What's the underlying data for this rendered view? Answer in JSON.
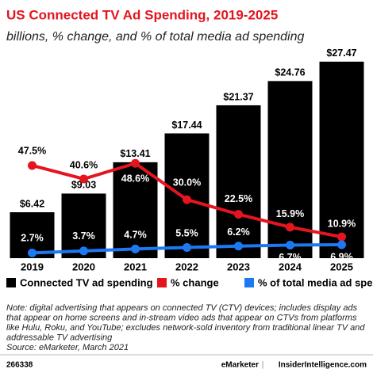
{
  "chart_data": {
    "type": "bar",
    "title": "US Connected TV Ad Spending, 2019-2025",
    "subtitle": "billions, % change, and % of total media ad spending",
    "categories": [
      "2019",
      "2020",
      "2021",
      "2022",
      "2023",
      "2024",
      "2025"
    ],
    "ylim": [
      0,
      30
    ],
    "y2lim": [
      0,
      110
    ],
    "legend": "bottom",
    "series": [
      {
        "name": "Connected TV ad spending",
        "type": "bar",
        "color": "#000000",
        "values": [
          6.42,
          9.03,
          13.41,
          17.44,
          21.37,
          24.76,
          27.47
        ],
        "value_labels": [
          "$6.42",
          "$9.03",
          "$13.41",
          "$17.44",
          "$21.37",
          "$24.76",
          "$27.47"
        ]
      },
      {
        "name": "% change",
        "type": "line",
        "axis": "y2",
        "color": "#e4151f",
        "values": [
          47.5,
          40.6,
          48.6,
          30.0,
          22.5,
          15.9,
          10.9
        ],
        "value_labels": [
          "47.5%",
          "40.6%",
          "48.6%",
          "30.0%",
          "22.5%",
          "15.9%",
          "10.9%"
        ]
      },
      {
        "name": "% of total media ad spending",
        "type": "line",
        "axis": "y2",
        "color": "#1c79f2",
        "values": [
          2.7,
          3.7,
          4.7,
          5.5,
          6.2,
          6.7,
          6.9
        ],
        "value_labels": [
          "2.7%",
          "3.7%",
          "4.7%",
          "5.5%",
          "6.2%",
          "6.7%",
          "6.9%"
        ]
      }
    ],
    "note": [
      "Note: digital advertising that appears on connected TV (CTV) devices; includes display ads",
      "that appear on home screens and in-stream video ads that appear on CTVs from platforms",
      "like Hulu, Roku, and YouTube; excludes network-sold inventory from traditional linear TV and",
      "addressable TV advertising"
    ],
    "source": "Source: eMarketer, March 2021",
    "footer": {
      "id": "266338",
      "brand": "eMarketer",
      "separator": "|",
      "site": "InsiderIntelligence.com"
    }
  }
}
